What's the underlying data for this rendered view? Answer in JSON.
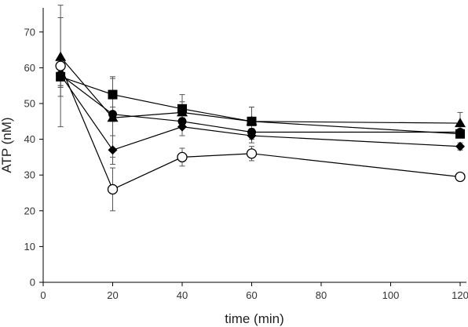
{
  "chart_data": {
    "type": "line",
    "title": "",
    "xlabel": "time (min)",
    "ylabel": "ATP (nM)",
    "xlim": [
      0,
      120
    ],
    "ylim": [
      0,
      75
    ],
    "xticks": [
      0,
      20,
      40,
      60,
      80,
      100,
      120
    ],
    "yticks": [
      0,
      10,
      20,
      30,
      40,
      50,
      60,
      70
    ],
    "grid": false,
    "x": [
      5,
      20,
      40,
      60,
      120
    ],
    "series": [
      {
        "marker": "open-circle",
        "values": [
          60.5,
          26,
          35,
          36,
          29.5
        ],
        "errors": [
          17,
          6,
          2.5,
          2,
          0.5
        ]
      },
      {
        "marker": "diamond",
        "values": [
          58,
          37,
          43.5,
          41,
          38
        ],
        "errors": [
          3,
          4,
          2.5,
          2,
          1
        ]
      },
      {
        "marker": "filled-circle",
        "values": [
          58,
          47,
          45,
          42,
          42
        ],
        "errors": [
          3,
          2,
          2,
          2,
          1.5
        ]
      },
      {
        "marker": "triangle",
        "values": [
          63,
          46,
          47.5,
          45,
          44.5
        ],
        "errors": [
          11,
          11,
          3,
          4,
          3
        ]
      },
      {
        "marker": "square",
        "values": [
          57.5,
          52.5,
          48.5,
          45,
          41.5
        ],
        "errors": [
          3,
          5,
          4,
          4,
          1
        ]
      }
    ]
  }
}
